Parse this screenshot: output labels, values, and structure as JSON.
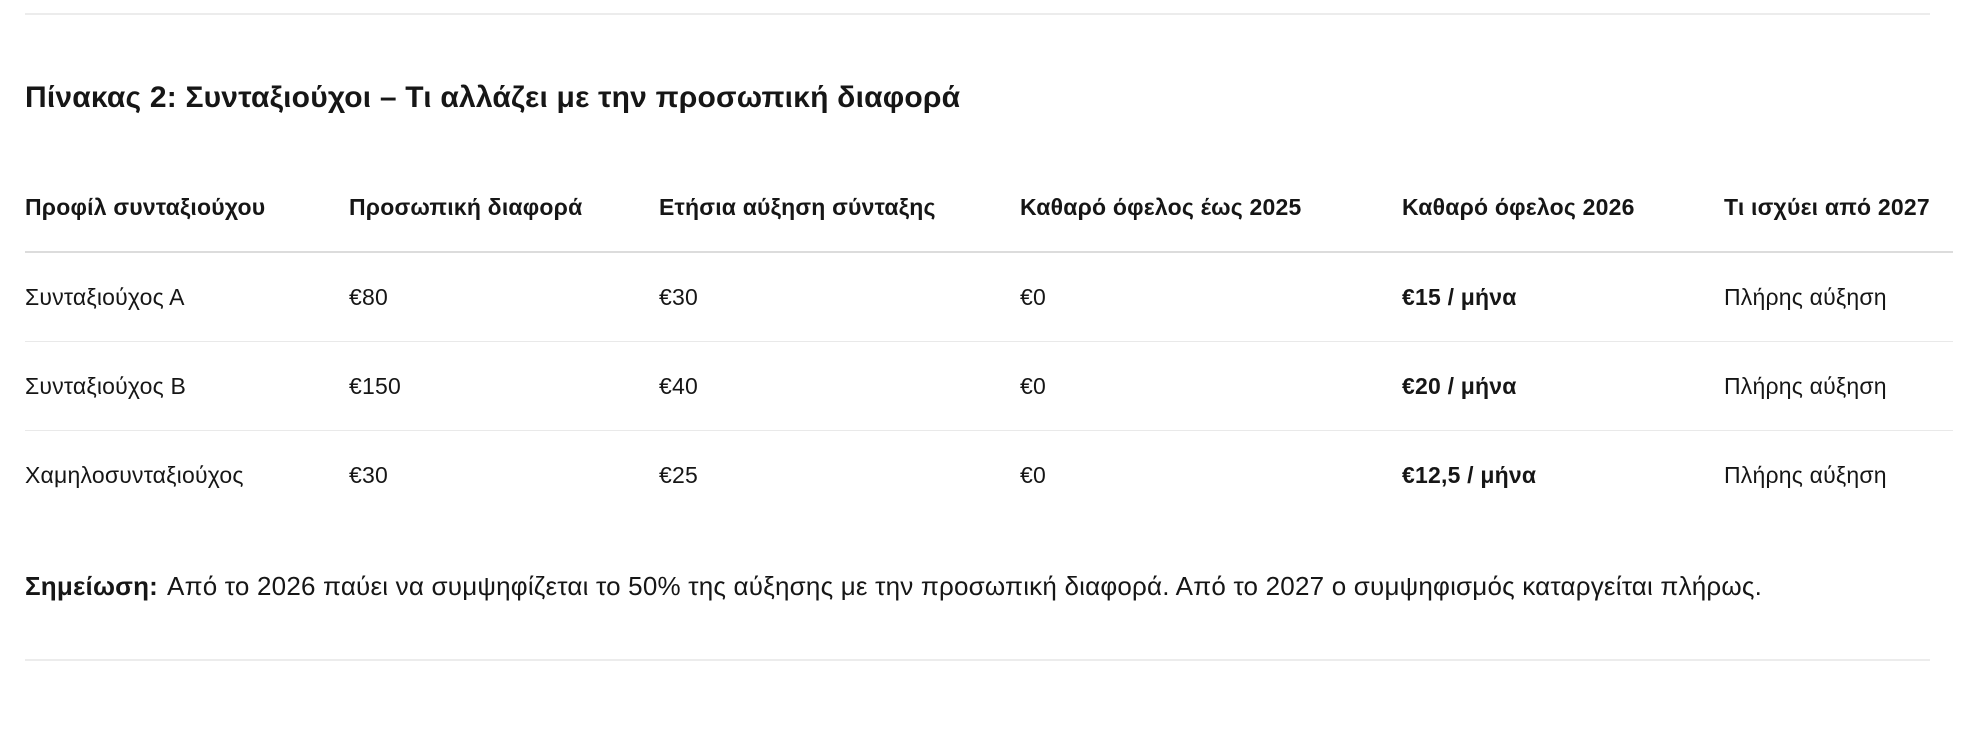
{
  "page": {
    "title": "Πίνακας 2: Συνταξιούχοι – Τι αλλάζει με την προσωπική διαφορά"
  },
  "table": {
    "columns": [
      "Προφίλ συνταξιούχου",
      "Προσωπική διαφορά",
      "Ετήσια αύξηση σύνταξης",
      "Καθαρό όφελος έως 2025",
      "Καθαρό όφελος 2026",
      "Τι ισχύει από 2027"
    ],
    "rows": [
      {
        "profile": "Συνταξιούχος Α",
        "personal_diff": "€80",
        "annual_increase": "€30",
        "net_benefit_2025": "€0",
        "net_benefit_2026": "€15 / μήνα",
        "from_2027": "Πλήρης αύξηση"
      },
      {
        "profile": "Συνταξιούχος Β",
        "personal_diff": "€150",
        "annual_increase": "€40",
        "net_benefit_2025": "€0",
        "net_benefit_2026": "€20 / μήνα",
        "from_2027": "Πλήρης αύξηση"
      },
      {
        "profile": "Χαμηλοσυνταξιούχος",
        "personal_diff": "€30",
        "annual_increase": "€25",
        "net_benefit_2025": "€0",
        "net_benefit_2026": "€12,5 / μήνα",
        "from_2027": "Πλήρης αύξηση"
      }
    ]
  },
  "note": {
    "label": "Σημείωση:",
    "text": "Από το 2026 παύει να συμψηφίζεται το 50% της αύξησης με την προσωπική διαφορά. Από το 2027 ο συμψηφισμός καταργείται πλήρως."
  },
  "colors": {
    "text": "#161616",
    "divider": "#ececec",
    "header_border": "#dcdcdc",
    "row_border": "#e9e9e9"
  }
}
